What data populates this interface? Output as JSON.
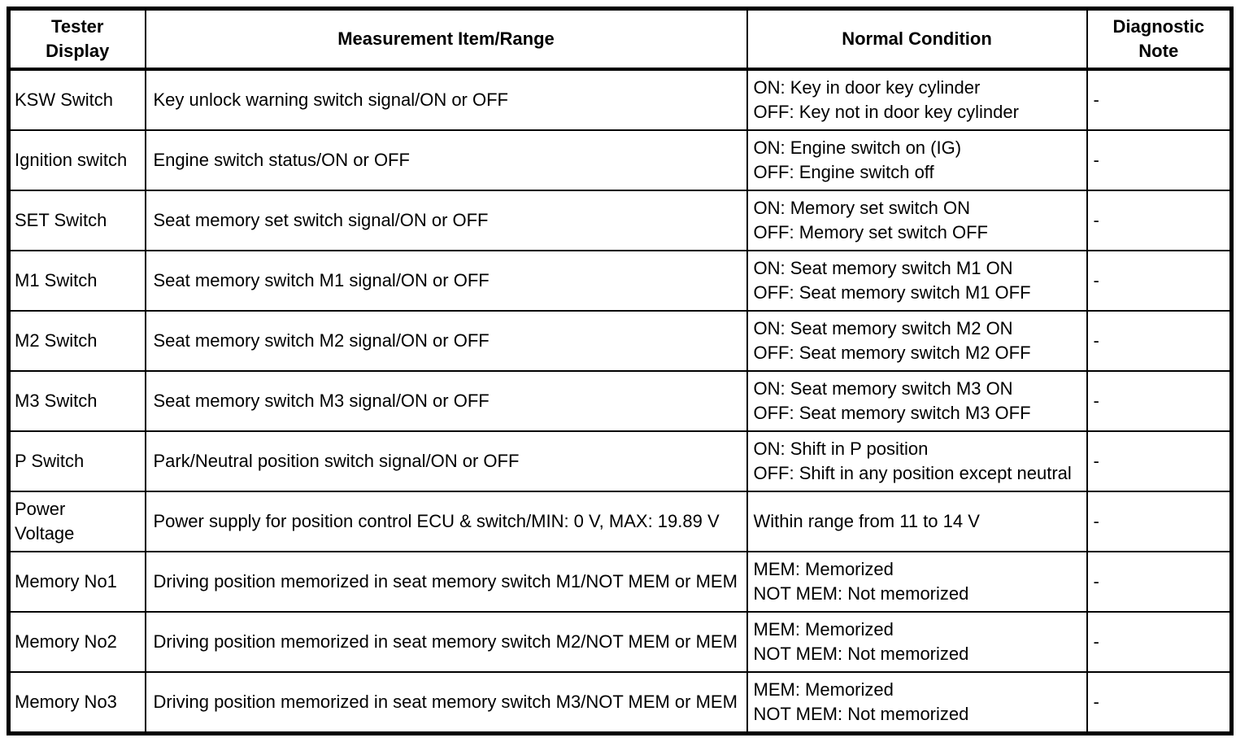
{
  "page": {
    "background_color": "#ffffff",
    "text_color": "#000000",
    "border_color": "#000000"
  },
  "table": {
    "columns": [
      {
        "id": "tester_display",
        "label_lines": [
          "Tester",
          "Display"
        ]
      },
      {
        "id": "measurement",
        "label_lines": [
          "Measurement Item/Range"
        ]
      },
      {
        "id": "normal_condition",
        "label_lines": [
          "Normal Condition"
        ]
      },
      {
        "id": "diagnostic_note",
        "label_lines": [
          "Diagnostic",
          "Note"
        ]
      }
    ],
    "rows": [
      {
        "tester_display": "KSW Switch",
        "measurement": "Key unlock warning switch signal/ON or OFF",
        "normal_condition": [
          "ON: Key in door key cylinder",
          "OFF: Key not in door key cylinder"
        ],
        "diagnostic_note": "-"
      },
      {
        "tester_display": "Ignition switch",
        "measurement": "Engine switch status/ON or OFF",
        "normal_condition": [
          "ON: Engine switch on (IG)",
          "OFF: Engine switch off"
        ],
        "diagnostic_note": "-"
      },
      {
        "tester_display": "SET Switch",
        "measurement": "Seat memory set switch signal/ON or OFF",
        "normal_condition": [
          "ON: Memory set switch ON",
          "OFF: Memory set switch OFF"
        ],
        "diagnostic_note": "-"
      },
      {
        "tester_display": "M1 Switch",
        "measurement": "Seat memory switch M1 signal/ON or OFF",
        "normal_condition": [
          "ON: Seat memory switch M1 ON",
          "OFF: Seat memory switch M1 OFF"
        ],
        "diagnostic_note": "-"
      },
      {
        "tester_display": "M2 Switch",
        "measurement": "Seat memory switch M2 signal/ON or OFF",
        "normal_condition": [
          "ON: Seat memory switch M2 ON",
          "OFF: Seat memory switch M2 OFF"
        ],
        "diagnostic_note": "-"
      },
      {
        "tester_display": "M3 Switch",
        "measurement": "Seat memory switch M3 signal/ON or OFF",
        "normal_condition": [
          "ON: Seat memory switch M3 ON",
          "OFF: Seat memory switch M3 OFF"
        ],
        "diagnostic_note": "-"
      },
      {
        "tester_display": "P Switch",
        "measurement": "Park/Neutral position switch signal/ON or OFF",
        "normal_condition": [
          "ON: Shift in P position",
          "OFF: Shift in any position except neutral"
        ],
        "diagnostic_note": "-"
      },
      {
        "tester_display": [
          "Power",
          "Voltage"
        ],
        "measurement": "Power supply for position control ECU & switch/MIN: 0 V, MAX: 19.89 V",
        "normal_condition": [
          "Within range from 11 to 14 V"
        ],
        "diagnostic_note": "-"
      },
      {
        "tester_display": "Memory No1",
        "measurement": "Driving position memorized in seat memory switch M1/NOT MEM or MEM",
        "normal_condition": [
          "MEM: Memorized",
          "NOT MEM: Not memorized"
        ],
        "diagnostic_note": "-"
      },
      {
        "tester_display": "Memory No2",
        "measurement": "Driving position memorized in seat memory switch M2/NOT MEM or MEM",
        "normal_condition": [
          "MEM: Memorized",
          "NOT MEM: Not memorized"
        ],
        "diagnostic_note": "-"
      },
      {
        "tester_display": "Memory No3",
        "measurement": "Driving position memorized in seat memory switch M3/NOT MEM or MEM",
        "normal_condition": [
          "MEM: Memorized",
          "NOT MEM: Not memorized"
        ],
        "diagnostic_note": "-"
      }
    ]
  }
}
